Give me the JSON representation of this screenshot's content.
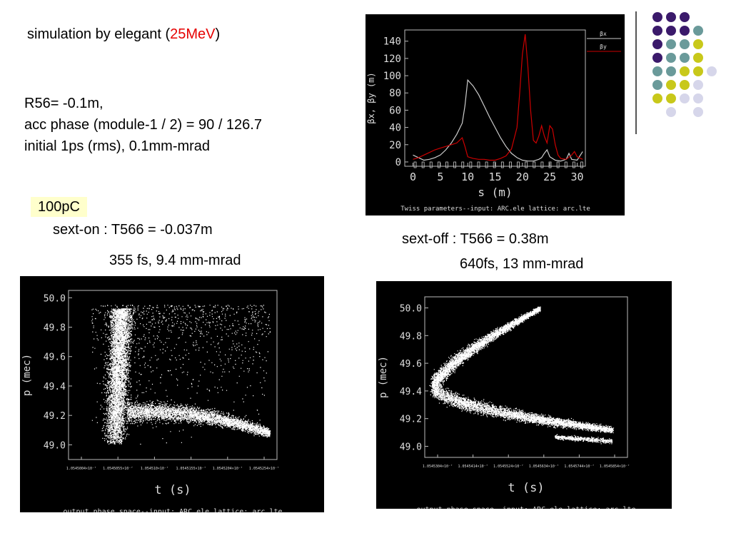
{
  "slide": {
    "title_prefix": "simulation by elegant (",
    "title_energy": "25MeV",
    "title_suffix": ")",
    "params": [
      "R56= -0.1m,",
      "acc phase (module-1 / 2) = 90 / 126.7",
      "initial 1ps (rms), 0.1mm-mrad"
    ],
    "charge": "100pC",
    "sext_on": "sext-on : T566 = -0.037m",
    "sext_on_result": "355 fs, 9.4 mm-mrad",
    "sext_off": "sext-off : T566 = 0.38m",
    "sext_off_result": "640fs, 13 mm-mrad"
  },
  "colors": {
    "accent_red": "#e60000",
    "highlight": "#ffffcc",
    "plot_bg": "#000000",
    "beta_x": "#cccccc",
    "beta_y": "#cc0000",
    "dot_purple": "#3b1a6b",
    "dot_teal": "#6a9a9a",
    "dot_olive": "#c8c81a",
    "dot_lavender": "#d6d6ea"
  },
  "decoration": {
    "dot_grid": [
      [
        "purple",
        "purple",
        "purple",
        null,
        null
      ],
      [
        "purple",
        "purple",
        "purple",
        "teal",
        null
      ],
      [
        "purple",
        "teal",
        "teal",
        "olive",
        null
      ],
      [
        "purple",
        "teal",
        "teal",
        "olive",
        null
      ],
      [
        "teal",
        "teal",
        "olive",
        "olive",
        "lavender"
      ],
      [
        "teal",
        "olive",
        "olive",
        "lavender",
        null
      ],
      [
        "olive",
        "olive",
        "lavender",
        "lavender",
        null
      ],
      [
        null,
        "lavender",
        null,
        "lavender",
        null
      ]
    ]
  },
  "chart_data": [
    {
      "type": "line",
      "xlabel": "s  (m)",
      "ylabel": "βx, βy  (m)",
      "caption": "Twiss parameters--input: ARC.ele   lattice: arc.lte",
      "legend": [
        "βx",
        "βy"
      ],
      "legend_position": "right",
      "xlim": [
        -1.5,
        31.5
      ],
      "ylim": [
        -5,
        153
      ],
      "x_ticks": [
        0,
        5,
        10,
        15,
        20,
        25,
        30
      ],
      "y_ticks": [
        0,
        20,
        40,
        60,
        80,
        100,
        120,
        140
      ],
      "series": [
        {
          "name": "βx",
          "color": "#cccccc",
          "x": [
            0,
            1,
            2,
            3,
            4,
            5,
            6,
            7,
            8,
            9,
            9.5,
            10,
            11,
            12,
            13,
            14,
            15,
            16,
            17,
            18,
            19,
            20,
            21,
            22,
            23,
            23.5,
            24,
            24.5,
            25,
            26,
            27,
            28,
            28.5,
            29,
            30,
            31
          ],
          "y": [
            8,
            5,
            2,
            3,
            5,
            8,
            14,
            22,
            32,
            45,
            65,
            95,
            88,
            78,
            65,
            52,
            40,
            28,
            18,
            10,
            5,
            2,
            1,
            1,
            3,
            5,
            10,
            14,
            6,
            2,
            1,
            3,
            10,
            3,
            2,
            12
          ]
        },
        {
          "name": "βy",
          "color": "#cc0000",
          "x": [
            0,
            1,
            2,
            3,
            4,
            5,
            6,
            7,
            8,
            9,
            9.5,
            10,
            11,
            12,
            13,
            14,
            15,
            16,
            17,
            18,
            19,
            19.5,
            20,
            20.5,
            21,
            21.5,
            22,
            22.5,
            23,
            23.5,
            24,
            24.5,
            25,
            25.5,
            26,
            26.5,
            27,
            28,
            29,
            29.5,
            30,
            31
          ],
          "y": [
            3,
            5,
            8,
            11,
            14,
            16,
            18,
            20,
            22,
            28,
            18,
            6,
            4,
            3,
            3,
            2,
            2,
            4,
            7,
            15,
            40,
            80,
            125,
            148,
            110,
            60,
            25,
            22,
            30,
            42,
            30,
            22,
            42,
            38,
            20,
            8,
            4,
            3,
            8,
            12,
            6,
            3
          ]
        }
      ]
    },
    {
      "type": "scatter",
      "caption": "output phase space--input: ARC.ele   lattice: arc.lte",
      "xlabel": "t  (s)",
      "ylabel": "p  (mec)",
      "ylim": [
        48.9,
        50.05
      ],
      "y_ticks": [
        49.0,
        49.2,
        49.4,
        49.6,
        49.8,
        50.0
      ],
      "x_tick_labels": [
        "1.0545004×10⁻⁷",
        "1.0545055×10⁻⁷",
        "1.054510×10⁻⁷",
        "1.0545155×10⁻⁷",
        "1.0545204×10⁻⁷",
        "1.0545254×10⁻⁷"
      ],
      "point_color": "#ffffff",
      "distribution": "L-shaped cloud: vertical band near t = 1.054508e-7 from p 49.0 to 50.0, turning into a horizontal tail to t = 1.054525e-7 around p 49.1"
    },
    {
      "type": "scatter",
      "caption": "output phase space--input: ARC.ele   lattice: arc.lte",
      "xlabel": "t  (s)",
      "ylabel": "p  (mec)",
      "ylim": [
        48.92,
        50.08
      ],
      "y_ticks": [
        49.0,
        49.2,
        49.4,
        49.6,
        49.8,
        50.0
      ],
      "x_tick_labels": [
        "1.0545304×10⁻⁷",
        "1.0545414×10⁻⁷",
        "1.0545524×10⁻⁷",
        "1.0545634×10⁻⁷",
        "1.0545744×10⁻⁷",
        "1.0545854×10⁻⁷"
      ],
      "point_color": "#ffffff",
      "distribution": "chevron-shaped band: apex near p 49.45 at the left, upper arm rising to p 50.05 at the right, lower arm falling to p 48.95"
    }
  ]
}
